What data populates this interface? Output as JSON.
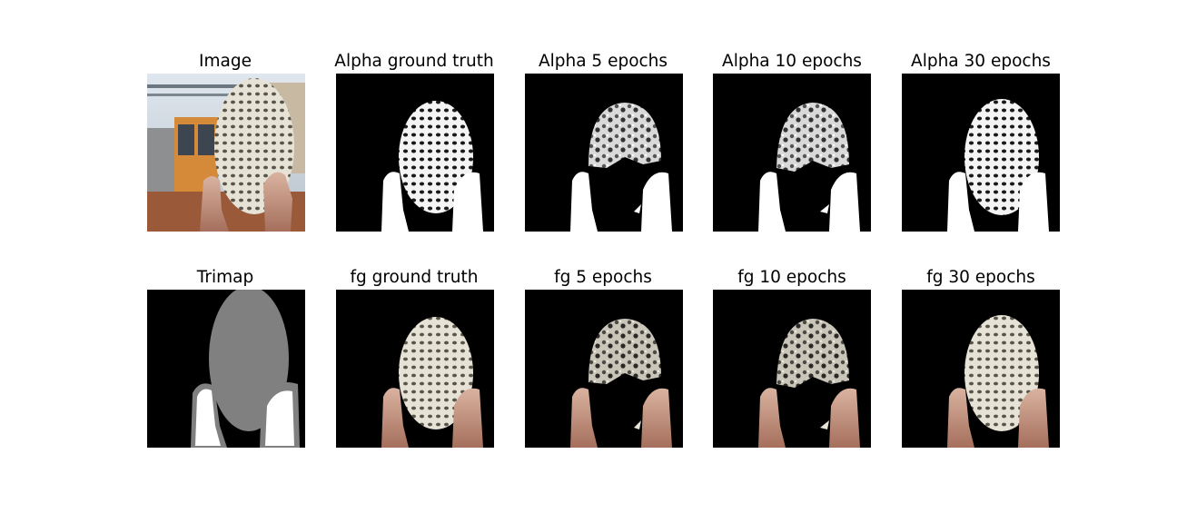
{
  "figure": {
    "rows": [
      {
        "panels": [
          {
            "id": "image",
            "title": "Image"
          },
          {
            "id": "alpha-gt",
            "title": "Alpha ground truth"
          },
          {
            "id": "alpha-5",
            "title": "Alpha 5 epochs"
          },
          {
            "id": "alpha-10",
            "title": "Alpha 10 epochs"
          },
          {
            "id": "alpha-30",
            "title": "Alpha 30 epochs"
          }
        ]
      },
      {
        "panels": [
          {
            "id": "trimap",
            "title": "Trimap"
          },
          {
            "id": "fg-gt",
            "title": "fg ground truth"
          },
          {
            "id": "fg-5",
            "title": "fg 5 epochs"
          },
          {
            "id": "fg-10",
            "title": "fg 10 epochs"
          },
          {
            "id": "fg-30",
            "title": "fg 30 epochs"
          }
        ]
      }
    ]
  }
}
